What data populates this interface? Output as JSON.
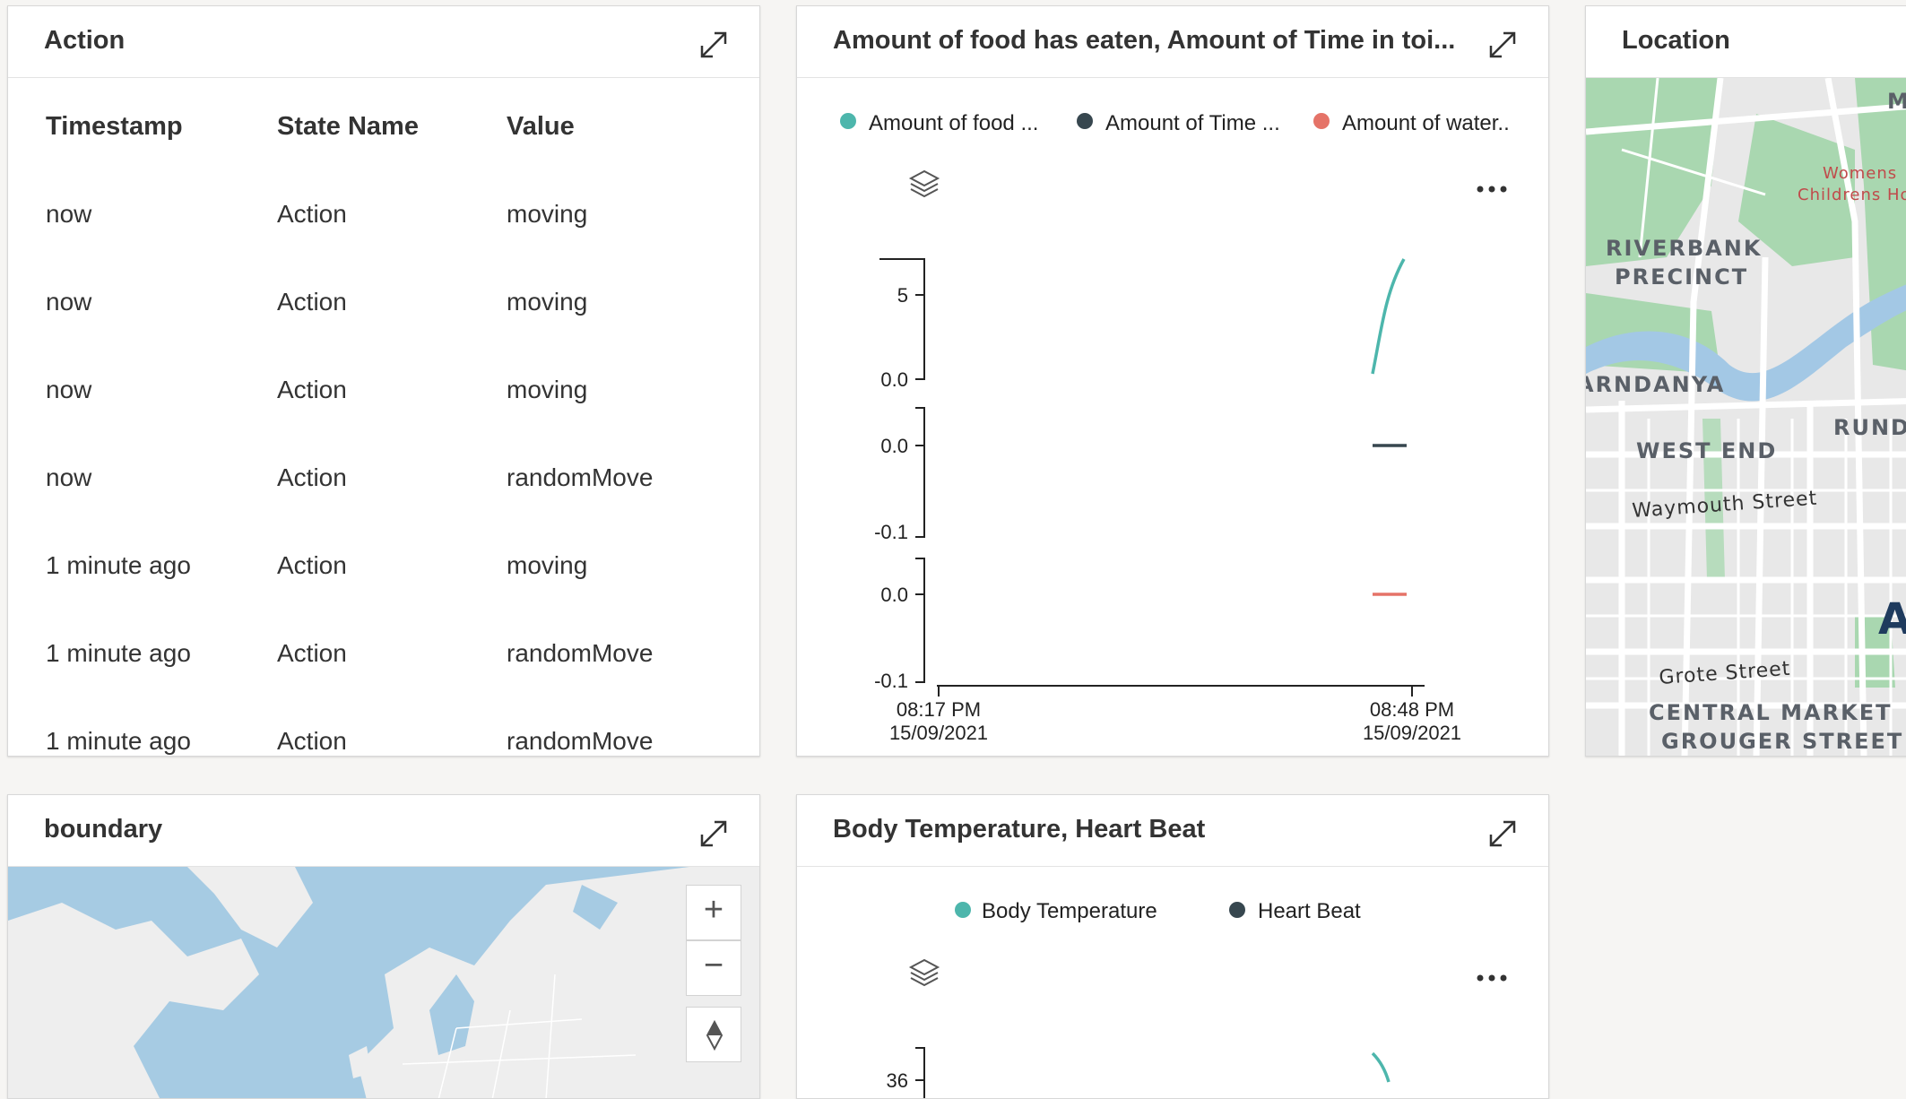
{
  "action_card": {
    "title": "Action",
    "columns": [
      "Timestamp",
      "State Name",
      "Value"
    ],
    "rows": [
      [
        "now",
        "Action",
        "moving"
      ],
      [
        "now",
        "Action",
        "moving"
      ],
      [
        "now",
        "Action",
        "moving"
      ],
      [
        "now",
        "Action",
        "randomMove"
      ],
      [
        "1 minute ago",
        "Action",
        "moving"
      ],
      [
        "1 minute ago",
        "Action",
        "randomMove"
      ],
      [
        "1 minute ago",
        "Action",
        "randomMove"
      ]
    ]
  },
  "food_chart_card": {
    "title": "Amount of food has eaten, Amount of Time in toi...",
    "legend": [
      {
        "label": "Amount of food ...",
        "color": "#4db6ac"
      },
      {
        "label": "Amount of Time ...",
        "color": "#37474f"
      },
      {
        "label": "Amount of water..",
        "color": "#e57368"
      }
    ],
    "x_ticks": [
      {
        "time": "08:17 PM",
        "date": "15/09/2021"
      },
      {
        "time": "08:48 PM",
        "date": "15/09/2021"
      }
    ],
    "panels": [
      {
        "ticks": [
          "5",
          "0.0"
        ]
      },
      {
        "ticks": [
          "0.0",
          "-0.1"
        ]
      },
      {
        "ticks": [
          "0.0",
          "-0.1"
        ]
      }
    ]
  },
  "location_card": {
    "title": "Location",
    "map_labels": {
      "riverbank": "RIVERBANK",
      "precinct": "PRECINCT",
      "arndanya": "ARNDANYA",
      "westend": "WEST END",
      "rund": "RUND",
      "waymouth": "Waymouth Street",
      "grote": "Grote Street",
      "central_market": "CENTRAL MARKET",
      "grouger": "GROUGER STREET",
      "womens": "Womens",
      "childrens": "Childrens Ho",
      "m": "M",
      "a": "A"
    }
  },
  "boundary_card": {
    "title": "boundary",
    "controls": {
      "zoom_in": "+",
      "zoom_out": "−"
    }
  },
  "body_temp_card": {
    "title": "Body Temperature, Heart Beat",
    "legend": [
      {
        "label": "Body Temperature",
        "color": "#4db6ac"
      },
      {
        "label": "Heart Beat",
        "color": "#37474f"
      }
    ],
    "tick": "36"
  },
  "chart_data": [
    {
      "type": "line",
      "title": "Amount of food has eaten, Amount of Time in toi...",
      "x": [
        "08:17 PM 15/09/2021",
        "08:48 PM 15/09/2021"
      ],
      "series": [
        {
          "name": "Amount of food ...",
          "points": [
            {
              "x": "08:47 PM",
              "y": 0.0
            },
            {
              "x": "08:48 PM",
              "y": 7.0
            }
          ]
        },
        {
          "name": "Amount of Time ...",
          "points": [
            {
              "x": "08:47 PM",
              "y": 0.0
            },
            {
              "x": "08:48 PM",
              "y": 0.0
            }
          ]
        },
        {
          "name": "Amount of water..",
          "points": [
            {
              "x": "08:47 PM",
              "y": 0.0
            },
            {
              "x": "08:48 PM",
              "y": 0.0
            }
          ]
        }
      ]
    },
    {
      "type": "line",
      "title": "Body Temperature, Heart Beat",
      "series": [
        {
          "name": "Body Temperature",
          "points": []
        },
        {
          "name": "Heart Beat",
          "points": []
        }
      ]
    }
  ]
}
